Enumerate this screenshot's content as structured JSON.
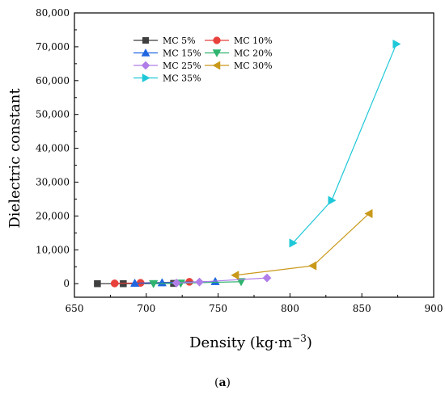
{
  "caption": {
    "open": "(",
    "letter": "a",
    "close": ")"
  },
  "chart_data": {
    "type": "scatter",
    "title": "",
    "xlabel": "Density (kg·m",
    "xlabel_sup": "−3",
    "xlabel_close": ")",
    "ylabel": "Dielectric constant",
    "xlim": [
      650,
      900
    ],
    "ylim": [
      -4000,
      80000
    ],
    "xticks": [
      650,
      700,
      750,
      800,
      850,
      900
    ],
    "yticks": [
      0,
      10000,
      20000,
      30000,
      40000,
      50000,
      60000,
      70000,
      80000
    ],
    "ytick_labels": [
      "0",
      "10,000",
      "20,000",
      "30,000",
      "40,000",
      "50,000",
      "60,000",
      "70,000",
      "80,000"
    ],
    "grid": false,
    "legend_position": "top-left",
    "series": [
      {
        "name": "MC 5%",
        "color": "#3f3f3f",
        "marker": "square",
        "points": [
          [
            666,
            0
          ],
          [
            684,
            0
          ],
          [
            719,
            80
          ]
        ]
      },
      {
        "name": "MC 10%",
        "color": "#e8413c",
        "marker": "circle",
        "points": [
          [
            678,
            80
          ],
          [
            696,
            250
          ],
          [
            730,
            550
          ]
        ]
      },
      {
        "name": "MC 15%",
        "color": "#1f66e0",
        "marker": "triangle-up",
        "points": [
          [
            692,
            150
          ],
          [
            711,
            300
          ],
          [
            748,
            650
          ]
        ]
      },
      {
        "name": "MC 20%",
        "color": "#2fb46e",
        "marker": "triangle-down",
        "points": [
          [
            705,
            0
          ],
          [
            724,
            150
          ],
          [
            766,
            600
          ]
        ]
      },
      {
        "name": "MC 25%",
        "color": "#b07ee8",
        "marker": "diamond",
        "points": [
          [
            721,
            200
          ],
          [
            737,
            500
          ],
          [
            784,
            1700
          ]
        ]
      },
      {
        "name": "MC 30%",
        "color": "#c9991a",
        "marker": "triangle-left",
        "points": [
          [
            762,
            2500
          ],
          [
            816,
            5300
          ],
          [
            855,
            20700
          ]
        ]
      },
      {
        "name": "MC 35%",
        "color": "#1fc8d8",
        "marker": "triangle-right",
        "points": [
          [
            802,
            12000
          ],
          [
            829,
            24600
          ],
          [
            874,
            70800
          ]
        ]
      }
    ]
  }
}
